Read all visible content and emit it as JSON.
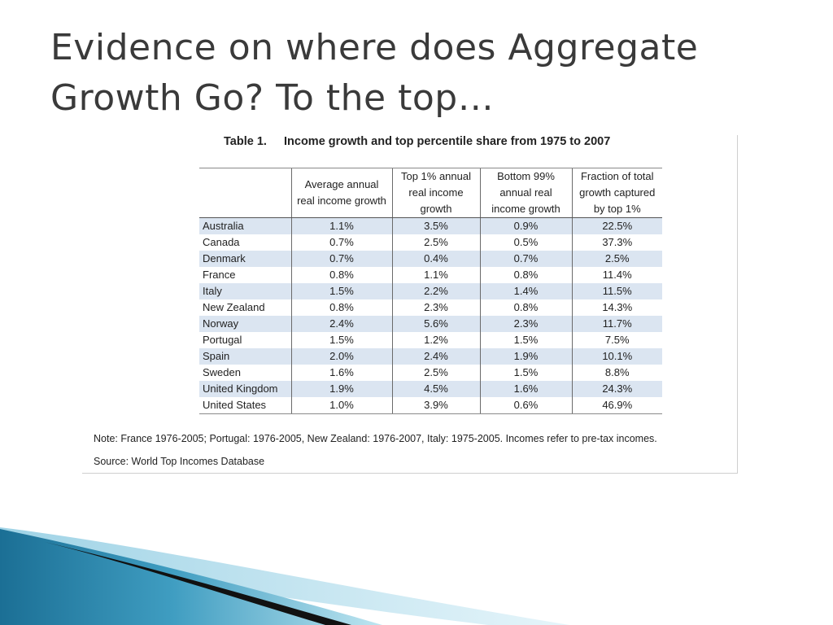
{
  "slide": {
    "title_line1": "Evidence on where does Aggregate",
    "title_line2": "Growth Go? To the top…"
  },
  "table": {
    "caption_number": "Table 1.",
    "caption_text": "Income growth and top percentile share from 1975 to 2007",
    "headers": [
      {
        "line1": "",
        "line2": "",
        "line3": ""
      },
      {
        "line1": "Average annual",
        "line2": "real income growth",
        "line3": ""
      },
      {
        "line1": "Top 1% annual",
        "line2": "real income",
        "line3": "growth"
      },
      {
        "line1": "Bottom 99%",
        "line2": "annual real",
        "line3": "income growth"
      },
      {
        "line1": "Fraction of total",
        "line2": "growth captured",
        "line3": "by top 1%"
      }
    ],
    "rows": [
      {
        "country": "Australia",
        "avg": "1.1%",
        "top1": "3.5%",
        "bottom99": "0.9%",
        "fraction": "22.5%"
      },
      {
        "country": "Canada",
        "avg": "0.7%",
        "top1": "2.5%",
        "bottom99": "0.5%",
        "fraction": "37.3%"
      },
      {
        "country": "Denmark",
        "avg": "0.7%",
        "top1": "0.4%",
        "bottom99": "0.7%",
        "fraction": "2.5%"
      },
      {
        "country": "France",
        "avg": "0.8%",
        "top1": "1.1%",
        "bottom99": "0.8%",
        "fraction": "11.4%"
      },
      {
        "country": "Italy",
        "avg": "1.5%",
        "top1": "2.2%",
        "bottom99": "1.4%",
        "fraction": "11.5%"
      },
      {
        "country": "New Zealand",
        "avg": "0.8%",
        "top1": "2.3%",
        "bottom99": "0.8%",
        "fraction": "14.3%"
      },
      {
        "country": "Norway",
        "avg": "2.4%",
        "top1": "5.6%",
        "bottom99": "2.3%",
        "fraction": "11.7%"
      },
      {
        "country": "Portugal",
        "avg": "1.5%",
        "top1": "1.2%",
        "bottom99": "1.5%",
        "fraction": "7.5%"
      },
      {
        "country": "Spain",
        "avg": "2.0%",
        "top1": "2.4%",
        "bottom99": "1.9%",
        "fraction": "10.1%"
      },
      {
        "country": "Sweden",
        "avg": "1.6%",
        "top1": "2.5%",
        "bottom99": "1.5%",
        "fraction": "8.8%"
      },
      {
        "country": "United Kingdom",
        "avg": "1.9%",
        "top1": "4.5%",
        "bottom99": "1.6%",
        "fraction": "24.3%"
      },
      {
        "country": "United States",
        "avg": "1.0%",
        "top1": "3.9%",
        "bottom99": "0.6%",
        "fraction": "46.9%"
      }
    ],
    "note": "Note: France 1976-2005; Portugal: 1976-2005, New Zealand: 1976-2007, Italy: 1975-2005. Incomes refer to pre-tax incomes.",
    "source": "Source: World Top Incomes Database"
  },
  "colors": {
    "title": "#3a3a3a",
    "row_band": "#dbe5f1",
    "decor_blue_dark": "#1b6f95",
    "decor_blue_light": "#6fc0da",
    "decor_black": "#111111"
  }
}
